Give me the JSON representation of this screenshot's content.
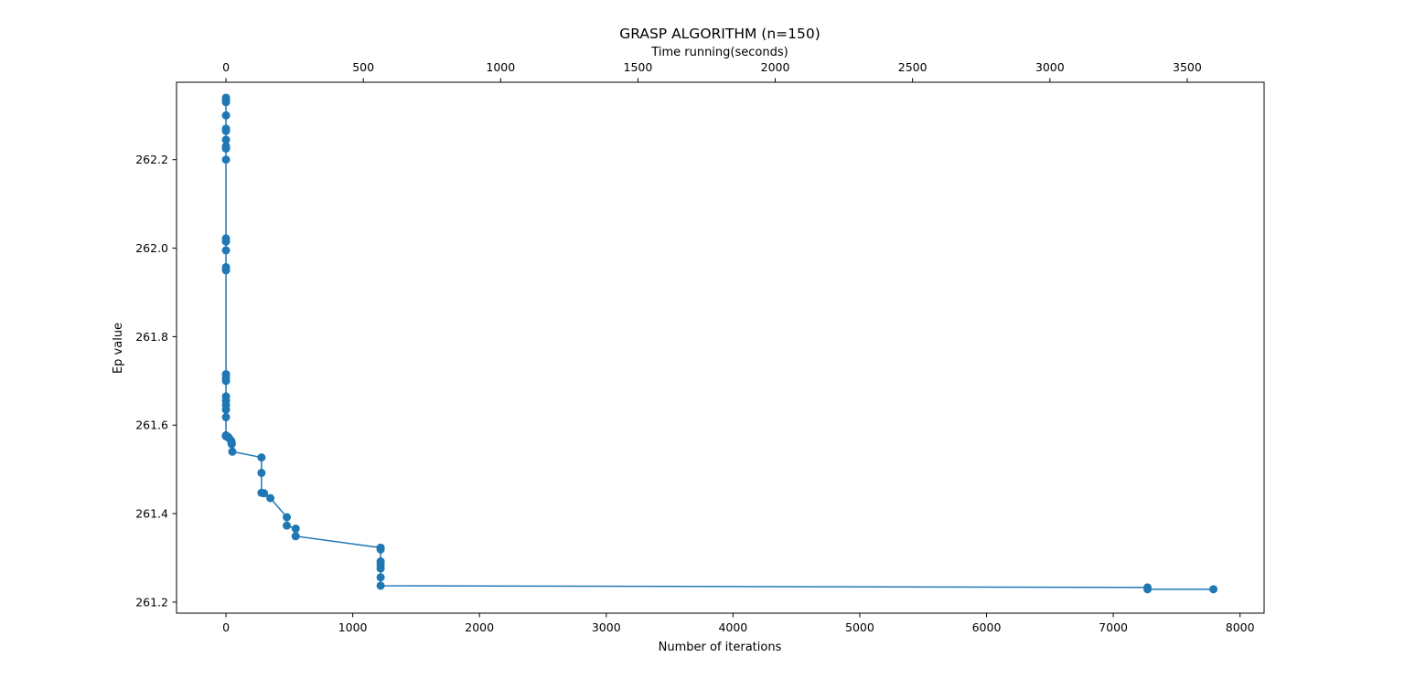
{
  "chart_data": {
    "type": "line",
    "title": "GRASP ALGORITHM (n=150)",
    "xlabel": "Number of iterations",
    "ylabel": "Ep value",
    "x2label": "Time running(seconds)",
    "xlim": [
      -390,
      8190
    ],
    "ylim": [
      261.175,
      262.375
    ],
    "x2lim": [
      -180,
      3780
    ],
    "xticks": [
      0,
      1000,
      2000,
      3000,
      4000,
      5000,
      6000,
      7000,
      8000
    ],
    "yticks": [
      261.2,
      261.4,
      261.6,
      261.8,
      262.0,
      262.2
    ],
    "ytick_labels": [
      "261.2",
      "261.4",
      "261.6",
      "261.8",
      "262.0",
      "262.2"
    ],
    "x2ticks": [
      0,
      500,
      1000,
      1500,
      2000,
      2500,
      3000,
      3500
    ],
    "grid": false,
    "legend": "none",
    "marker": "circle",
    "series": [
      {
        "color": "#1f77b4",
        "x": [
          0,
          0,
          0,
          0,
          0,
          0,
          0,
          0,
          0,
          0,
          0,
          0,
          0,
          0,
          0,
          0,
          0,
          0,
          0,
          0,
          0,
          0,
          0,
          0,
          0,
          0,
          18,
          25,
          40,
          45,
          45,
          50,
          280,
          280,
          280,
          300,
          350,
          480,
          480,
          550,
          550,
          1220,
          1220,
          1220,
          1220,
          1220,
          1220,
          1220,
          7270,
          7270,
          7790
        ],
        "y": [
          262.34,
          262.335,
          262.33,
          262.3,
          262.27,
          262.265,
          262.245,
          262.23,
          262.225,
          262.2,
          262.022,
          262.015,
          261.995,
          261.957,
          261.95,
          261.715,
          261.707,
          261.7,
          261.665,
          261.655,
          261.645,
          261.635,
          261.618,
          261.577,
          261.575,
          261.575,
          261.573,
          261.57,
          261.565,
          261.56,
          261.557,
          261.54,
          261.527,
          261.492,
          261.447,
          261.446,
          261.435,
          261.392,
          261.373,
          261.366,
          261.349,
          261.323,
          261.319,
          261.292,
          261.285,
          261.276,
          261.256,
          261.237,
          261.233,
          261.229,
          261.229
        ]
      }
    ]
  }
}
